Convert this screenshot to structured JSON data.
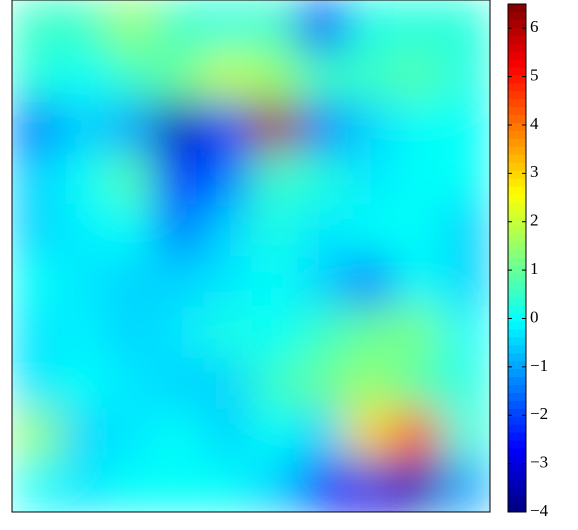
{
  "chart_data": {
    "type": "contour",
    "z": [
      [
        0.5,
        0.5,
        1.5,
        0.5,
        0.3,
        0.5,
        -2.5,
        0.2,
        0.3,
        0.3
      ],
      [
        0.3,
        0,
        0.5,
        1,
        2,
        1.5,
        0.5,
        0.5,
        0.8,
        0.2
      ],
      [
        -1.5,
        -0.5,
        -1,
        -3.5,
        -2,
        6,
        -1.5,
        -0.5,
        0,
        0
      ],
      [
        -0.5,
        0,
        0.8,
        -2.5,
        -1.5,
        0.5,
        0.3,
        -0.3,
        0,
        0
      ],
      [
        -0.5,
        -0.2,
        0,
        -1.5,
        -0.5,
        0.2,
        -0.3,
        0,
        0,
        -0.5
      ],
      [
        0,
        -0.3,
        -0.5,
        -0.5,
        -0.3,
        0,
        -0.5,
        -1.5,
        0,
        -0.5
      ],
      [
        -0.3,
        -0.2,
        -0.5,
        -0.3,
        0.2,
        0,
        0.5,
        1,
        1.2,
        0
      ],
      [
        -0.3,
        0,
        -0.3,
        -0.5,
        -0.5,
        0.5,
        1,
        1.5,
        0.8,
        0.2
      ],
      [
        1.5,
        -0.5,
        -0.3,
        0,
        -0.5,
        0,
        -0.5,
        3,
        4.5,
        0.3
      ],
      [
        0,
        -0.3,
        0,
        0,
        0,
        -0.5,
        -2.5,
        -3,
        -3.5,
        -1
      ]
    ],
    "colormap": "jet",
    "clim": [
      -4,
      6.5
    ],
    "cticks": [
      {
        "value": -4,
        "label": "−4"
      },
      {
        "value": -3,
        "label": "−3"
      },
      {
        "value": -2,
        "label": "−2"
      },
      {
        "value": -1,
        "label": "−1"
      },
      0,
      1,
      2,
      3,
      4,
      5,
      6
    ]
  }
}
